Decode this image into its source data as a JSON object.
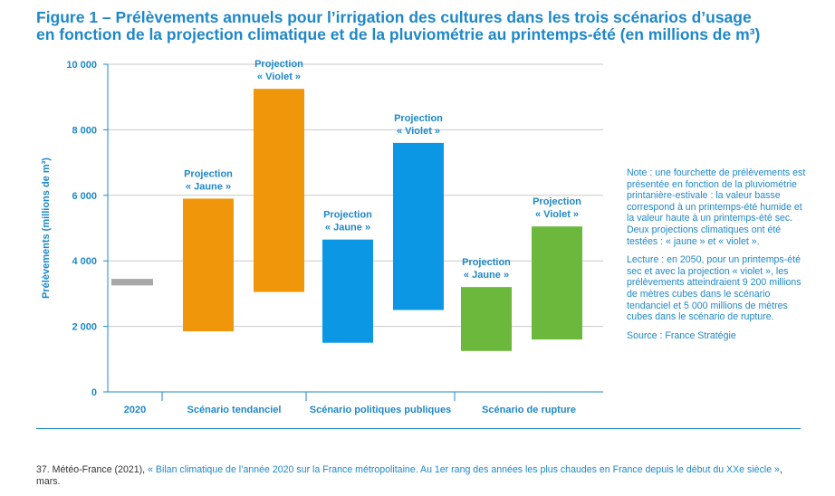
{
  "title": {
    "line1": "Figure 1 – Prélèvements annuels pour l’irrigation des cultures dans les trois scénarios d’usage",
    "line2": "en fonction de la projection climatique et de la pluviométrie au printemps-été (en millions de m³)"
  },
  "chart_data": {
    "type": "bar",
    "subtype": "floating-range",
    "ylabel": "Prélèvements (millions de m³)",
    "ylim": [
      0,
      10000
    ],
    "yticks": [
      0,
      2000,
      4000,
      6000,
      8000,
      10000
    ],
    "ytick_labels": [
      "0",
      "2 000",
      "4 000",
      "6 000",
      "8 000",
      "10 000"
    ],
    "grid": true,
    "categories": [
      "2020",
      "Scénario tendanciel",
      "Scénario politiques publiques",
      "Scénario de rupture"
    ],
    "colors": {
      "reference": "#a8a8a8",
      "jaune": "#f0960a",
      "violet": "#0b97e3",
      "rupture": "#6cb83c"
    },
    "bars": [
      {
        "category": "2020",
        "low": 3250,
        "high": 3450,
        "label_line1": "",
        "label_line2": "",
        "color": "#a8a8a8"
      },
      {
        "category": "Scénario tendanciel",
        "low": 1850,
        "high": 5900,
        "label_line1": "Projection",
        "label_line2": "« Jaune »",
        "color": "#f0960a"
      },
      {
        "category": "Scénario tendanciel",
        "low": 3050,
        "high": 9250,
        "label_line1": "Projection",
        "label_line2": "« Violet »",
        "color": "#f0960a"
      },
      {
        "category": "Scénario politiques publiques",
        "low": 1500,
        "high": 4650,
        "label_line1": "Projection",
        "label_line2": "« Jaune »",
        "color": "#0b97e3"
      },
      {
        "category": "Scénario politiques publiques",
        "low": 2500,
        "high": 7600,
        "label_line1": "Projection",
        "label_line2": "« Violet »",
        "color": "#0b97e3"
      },
      {
        "category": "Scénario de rupture",
        "low": 1250,
        "high": 3200,
        "label_line1": "Projection",
        "label_line2": "« Jaune »",
        "color": "#6cb83c"
      },
      {
        "category": "Scénario de rupture",
        "low": 1600,
        "high": 5050,
        "label_line1": "Projection",
        "label_line2": "« Violet »",
        "color": "#6cb83c"
      }
    ]
  },
  "note": {
    "p1": "Note : une fourchette de prélèvements est présentée en fonction de la pluviométrie printanière-estivale : la valeur basse correspond à un printemps-été humide et la valeur haute à un printemps-été sec. Deux projections climatiques ont été testées : « jaune » et « violet ».",
    "p2": "Lecture : en 2050, pour un printemps-été sec et avec la projection « violet », les prélèvements atteindraient 9 200 millions de mètres cubes dans le scénario tendanciel et 5 000 millions de mètres cubes dans le scénario de rupture.",
    "p3": "Source : France Stratégie"
  },
  "footnote": {
    "prefix": "37. Météo-France (2021), ",
    "quote": "« Bilan climatique de l’année 2020 sur la France métropolitaine. Au 1er rang des années les plus chaudes en France depuis le début du XXe siècle »",
    "suffix": ", mars."
  }
}
